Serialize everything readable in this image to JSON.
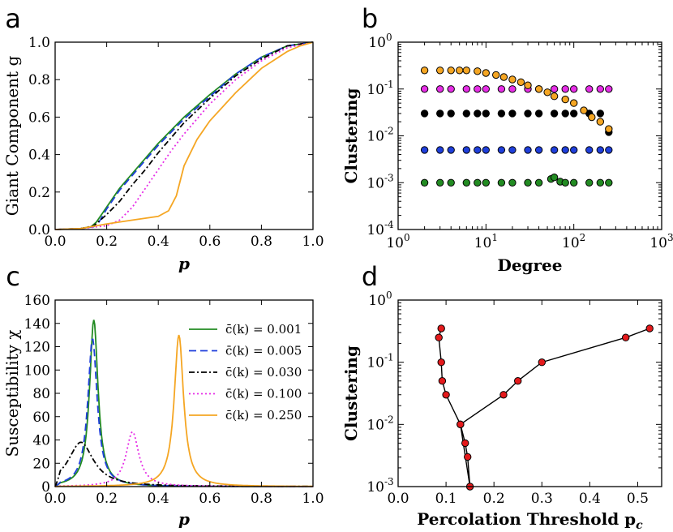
{
  "chart_data": [
    {
      "type": "line",
      "panel": "a",
      "xlabel": "p",
      "ylabel": "Giant Component g",
      "xlim": [
        0.0,
        1.0
      ],
      "ylim": [
        0.0,
        1.0
      ],
      "xticks": [
        "0.0",
        "0.2",
        "0.4",
        "0.6",
        "0.8",
        "1.0"
      ],
      "yticks": [
        "0.0",
        "0.2",
        "0.4",
        "0.6",
        "0.8",
        "1.0"
      ],
      "series": [
        {
          "name": "c(k)=0.001",
          "color": "#228b22",
          "dash": "solid",
          "x": [
            0,
            0.1,
            0.14,
            0.16,
            0.2,
            0.25,
            0.3,
            0.4,
            0.5,
            0.6,
            0.7,
            0.8,
            0.9,
            1.0
          ],
          "y": [
            0,
            0.005,
            0.015,
            0.04,
            0.12,
            0.22,
            0.3,
            0.46,
            0.6,
            0.72,
            0.83,
            0.92,
            0.98,
            1.0
          ]
        },
        {
          "name": "c(k)=0.005",
          "color": "#1f3fdb",
          "dash": "dashed",
          "x": [
            0,
            0.1,
            0.15,
            0.17,
            0.2,
            0.25,
            0.3,
            0.4,
            0.5,
            0.6,
            0.7,
            0.8,
            0.9,
            1.0
          ],
          "y": [
            0,
            0.005,
            0.015,
            0.04,
            0.11,
            0.21,
            0.29,
            0.45,
            0.59,
            0.71,
            0.83,
            0.92,
            0.98,
            1.0
          ]
        },
        {
          "name": "c(k)=0.030",
          "color": "#000000",
          "dash": "dashdot",
          "x": [
            0,
            0.1,
            0.15,
            0.2,
            0.25,
            0.3,
            0.35,
            0.4,
            0.5,
            0.6,
            0.7,
            0.8,
            0.9,
            1.0
          ],
          "y": [
            0,
            0.005,
            0.02,
            0.08,
            0.15,
            0.24,
            0.32,
            0.41,
            0.57,
            0.7,
            0.82,
            0.91,
            0.98,
            1.0
          ]
        },
        {
          "name": "c(k)=0.100",
          "color": "#e62ee6",
          "dash": "dotted",
          "x": [
            0,
            0.1,
            0.2,
            0.25,
            0.3,
            0.35,
            0.4,
            0.45,
            0.5,
            0.6,
            0.7,
            0.8,
            0.9,
            1.0
          ],
          "y": [
            0,
            0.005,
            0.02,
            0.05,
            0.12,
            0.22,
            0.32,
            0.42,
            0.51,
            0.67,
            0.8,
            0.9,
            0.97,
            1.0
          ]
        },
        {
          "name": "c(k)=0.250",
          "color": "#f5a623",
          "dash": "solid",
          "x": [
            0,
            0.1,
            0.2,
            0.3,
            0.4,
            0.44,
            0.47,
            0.5,
            0.55,
            0.6,
            0.7,
            0.8,
            0.9,
            0.95,
            1.0
          ],
          "y": [
            0,
            0.005,
            0.03,
            0.05,
            0.07,
            0.1,
            0.18,
            0.34,
            0.48,
            0.58,
            0.73,
            0.86,
            0.95,
            0.98,
            1.0
          ]
        }
      ]
    },
    {
      "type": "scatter",
      "panel": "b",
      "xlabel": "Degree",
      "ylabel": "Clustering",
      "xscale": "log",
      "yscale": "log",
      "xlim_exp": [
        0,
        3
      ],
      "ylim_exp": [
        -4,
        0
      ],
      "xtick_exps": [
        "0",
        "1",
        "2",
        "3"
      ],
      "ytick_exps": [
        "0",
        "-1",
        "-2",
        "-3",
        "-4"
      ],
      "tick_base": "10",
      "series": [
        {
          "name": "c(k)=0.250",
          "color": "#f5a623",
          "x": [
            2,
            3,
            4,
            5,
            6,
            8,
            10,
            13,
            16,
            20,
            25,
            30,
            40,
            50,
            60,
            80,
            100,
            130,
            160,
            200,
            250
          ],
          "y": [
            0.25,
            0.25,
            0.25,
            0.25,
            0.25,
            0.24,
            0.22,
            0.2,
            0.18,
            0.16,
            0.14,
            0.12,
            0.1,
            0.085,
            0.07,
            0.06,
            0.05,
            0.035,
            0.025,
            0.02,
            0.014
          ]
        },
        {
          "name": "c(k)=0.100",
          "color": "#e62ee6",
          "x": [
            2,
            3,
            4,
            6,
            8,
            10,
            15,
            20,
            30,
            40,
            60,
            80,
            100,
            150,
            200,
            250
          ],
          "y": [
            0.1,
            0.1,
            0.1,
            0.1,
            0.1,
            0.1,
            0.1,
            0.1,
            0.1,
            0.1,
            0.1,
            0.1,
            0.1,
            0.1,
            0.1,
            0.1
          ]
        },
        {
          "name": "c(k)=0.030",
          "color": "#000000",
          "x": [
            2,
            3,
            4,
            6,
            8,
            10,
            15,
            20,
            30,
            40,
            60,
            80,
            100,
            150,
            200,
            250
          ],
          "y": [
            0.03,
            0.03,
            0.03,
            0.03,
            0.03,
            0.03,
            0.03,
            0.03,
            0.03,
            0.03,
            0.03,
            0.03,
            0.03,
            0.03,
            0.03,
            0.012
          ]
        },
        {
          "name": "c(k)=0.005",
          "color": "#1f3fdb",
          "x": [
            2,
            3,
            4,
            6,
            8,
            10,
            15,
            20,
            30,
            40,
            60,
            80,
            100,
            150,
            200,
            250
          ],
          "y": [
            0.005,
            0.005,
            0.005,
            0.005,
            0.005,
            0.005,
            0.005,
            0.005,
            0.005,
            0.005,
            0.005,
            0.005,
            0.005,
            0.005,
            0.005,
            0.005
          ]
        },
        {
          "name": "c(k)=0.001",
          "color": "#228b22",
          "x": [
            2,
            3,
            4,
            6,
            8,
            10,
            15,
            20,
            30,
            40,
            55,
            60,
            70,
            80,
            100,
            150,
            200,
            250
          ],
          "y": [
            0.001,
            0.001,
            0.001,
            0.001,
            0.001,
            0.001,
            0.001,
            0.001,
            0.001,
            0.001,
            0.0012,
            0.0013,
            0.00105,
            0.001,
            0.001,
            0.001,
            0.001,
            0.001
          ]
        }
      ]
    },
    {
      "type": "line",
      "panel": "c",
      "xlabel": "p",
      "ylabel": "Susceptibility χ",
      "xlim": [
        0.0,
        1.0
      ],
      "ylim": [
        0,
        160
      ],
      "xticks": [
        "0.0",
        "0.2",
        "0.4",
        "0.6",
        "0.8",
        "1.0"
      ],
      "yticks": [
        "0",
        "20",
        "40",
        "60",
        "80",
        "100",
        "120",
        "140",
        "160"
      ],
      "legend_position": "top-right",
      "series": [
        {
          "name": "c(k)=0.001",
          "legend": "c̄(k) = 0.001",
          "color": "#228b22",
          "dash": "solid",
          "peak_x": 0.15,
          "peak_y": 143,
          "width": 0.02,
          "base": 2
        },
        {
          "name": "c(k)=0.005",
          "legend": "c̄(k) = 0.005",
          "color": "#1f3fdb",
          "dash": "dashed",
          "peak_x": 0.145,
          "peak_y": 127,
          "width": 0.022,
          "base": 2
        },
        {
          "name": "c(k)=0.030",
          "legend": "c̄(k) = 0.030",
          "color": "#000000",
          "dash": "dashdot",
          "peak_x": 0.1,
          "peak_y": 38,
          "width": 0.06,
          "base": 2
        },
        {
          "name": "c(k)=0.100",
          "legend": "c̄(k) = 0.100",
          "color": "#e62ee6",
          "dash": "dotted",
          "peak_x": 0.3,
          "peak_y": 47,
          "width": 0.03,
          "base": 1
        },
        {
          "name": "c(k)=0.250",
          "legend": "c̄(k) = 0.250",
          "color": "#f5a623",
          "dash": "solid",
          "peak_x": 0.48,
          "peak_y": 130,
          "width": 0.022,
          "base": 2
        }
      ]
    },
    {
      "type": "line",
      "panel": "d",
      "xlabel": "Percolation Threshold p_c",
      "ylabel": "Clustering",
      "yscale": "log",
      "xlim": [
        0.0,
        0.55
      ],
      "ylim_exp": [
        -3,
        0
      ],
      "xticks": [
        "0.0",
        "0.1",
        "0.2",
        "0.3",
        "0.4",
        "0.5"
      ],
      "ytick_exps": [
        "0",
        "-1",
        "-2",
        "-3"
      ],
      "tick_base": "10",
      "marker_color": "#e41a1c",
      "x": [
        0.09,
        0.085,
        0.09,
        0.092,
        0.1,
        0.13,
        0.14,
        0.145,
        0.15,
        0.13,
        0.22,
        0.25,
        0.3,
        0.475,
        0.525
      ],
      "y": [
        0.35,
        0.25,
        0.1,
        0.05,
        0.03,
        0.01,
        0.005,
        0.003,
        0.001,
        0.01,
        0.03,
        0.05,
        0.1,
        0.25,
        0.35
      ]
    }
  ],
  "panel_letters": [
    "a",
    "b",
    "c",
    "d"
  ]
}
